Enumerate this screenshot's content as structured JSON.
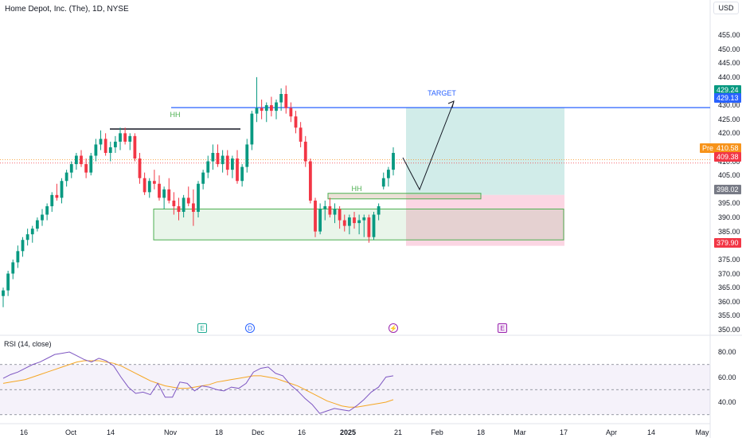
{
  "header": {
    "title": "Home Depot, Inc. (The), 1D, NYSE",
    "currency": "USD"
  },
  "rsi_panel": {
    "title": "RSI (14, close)"
  },
  "price_axis": {
    "ticks": [
      "455.00",
      "450.00",
      "445.00",
      "440.00",
      "435.00",
      "430.00",
      "425.00",
      "420.00",
      "415.00",
      "410.00",
      "405.00",
      "400.00",
      "395.00",
      "390.00",
      "385.00",
      "380.00",
      "375.00",
      "370.00",
      "365.00",
      "360.00",
      "355.00",
      "350.00"
    ]
  },
  "rsi_axis": {
    "ticks": [
      "80.00",
      "60.00",
      "40.00"
    ]
  },
  "time_axis": {
    "ticks": [
      "16",
      "Oct",
      "14",
      "Nov",
      "18",
      "Dec",
      "16",
      "2025",
      "21",
      "Feb",
      "18",
      "Mar",
      "17",
      "Apr",
      "14",
      "May"
    ],
    "bold_label": "2025"
  },
  "price_tags": {
    "green_tag": "429.24",
    "blue_tag": "429.13",
    "pre_label": "Pre",
    "pre_price": "410.58",
    "last_price": "409.38",
    "mid_tag": "398.02",
    "stop_tag": "379.90"
  },
  "annotations": {
    "target": "TARGET",
    "hh_top": "HH",
    "hh_mid": "HH"
  },
  "events": {
    "earnings": "E",
    "dividend": "D",
    "future_earnings": "E",
    "split": "⚡"
  },
  "colors": {
    "up": "#089981",
    "down": "#f23645",
    "target_line": "#2962ff",
    "hh_line": "#131722",
    "zone": "#4caf50",
    "rsi": "#7e57c2",
    "rsi_ma": "#f5a623",
    "profit_zone": "#b2dfdb",
    "loss_zone": "#f8bbd0"
  },
  "chart_data": {
    "type": "candlestick",
    "title": "Home Depot, Inc. (The), 1D, NYSE",
    "ylim": [
      350,
      455
    ],
    "ohlc": [
      [
        362,
        365,
        358,
        364
      ],
      [
        364,
        371,
        362,
        370
      ],
      [
        370,
        375,
        368,
        374
      ],
      [
        374,
        380,
        372,
        378
      ],
      [
        378,
        383,
        376,
        382
      ],
      [
        382,
        386,
        380,
        384
      ],
      [
        384,
        387,
        381,
        386
      ],
      [
        386,
        390,
        385,
        389
      ],
      [
        389,
        393,
        387,
        391
      ],
      [
        391,
        395,
        389,
        394
      ],
      [
        394,
        399,
        392,
        398
      ],
      [
        398,
        402,
        396,
        397
      ],
      [
        397,
        404,
        395,
        403
      ],
      [
        403,
        407,
        401,
        406
      ],
      [
        406,
        410,
        404,
        409
      ],
      [
        409,
        413,
        407,
        412
      ],
      [
        412,
        414,
        408,
        409
      ],
      [
        409,
        411,
        404,
        406
      ],
      [
        406,
        413,
        405,
        412
      ],
      [
        412,
        418,
        410,
        416
      ],
      [
        416,
        421,
        414,
        418
      ],
      [
        418,
        420,
        412,
        413
      ],
      [
        413,
        417,
        410,
        415
      ],
      [
        415,
        419,
        413,
        417
      ],
      [
        417,
        422,
        414,
        420
      ],
      [
        420,
        422,
        416,
        417
      ],
      [
        417,
        420,
        414,
        419
      ],
      [
        419,
        420,
        410,
        411
      ],
      [
        411,
        413,
        402,
        404
      ],
      [
        404,
        406,
        398,
        399
      ],
      [
        399,
        404,
        397,
        403
      ],
      [
        403,
        407,
        400,
        402
      ],
      [
        402,
        405,
        396,
        397
      ],
      [
        397,
        401,
        393,
        400
      ],
      [
        400,
        404,
        395,
        396
      ],
      [
        396,
        399,
        391,
        394
      ],
      [
        394,
        397,
        389,
        392
      ],
      [
        392,
        398,
        390,
        397
      ],
      [
        397,
        401,
        394,
        395
      ],
      [
        395,
        400,
        387,
        392
      ],
      [
        392,
        403,
        390,
        402
      ],
      [
        402,
        407,
        400,
        406
      ],
      [
        406,
        412,
        404,
        410
      ],
      [
        410,
        416,
        407,
        413
      ],
      [
        413,
        416,
        408,
        409
      ],
      [
        409,
        414,
        406,
        412
      ],
      [
        412,
        414,
        405,
        407
      ],
      [
        407,
        412,
        404,
        411
      ],
      [
        411,
        414,
        402,
        403
      ],
      [
        403,
        409,
        401,
        408
      ],
      [
        408,
        418,
        406,
        416
      ],
      [
        416,
        428,
        414,
        427
      ],
      [
        427,
        440,
        424,
        429
      ],
      [
        429,
        432,
        425,
        428
      ],
      [
        428,
        431,
        424,
        430
      ],
      [
        430,
        433,
        426,
        428
      ],
      [
        428,
        432,
        425,
        431
      ],
      [
        431,
        436,
        428,
        434
      ],
      [
        434,
        437,
        427,
        429
      ],
      [
        429,
        431,
        424,
        426
      ],
      [
        426,
        428,
        420,
        422
      ],
      [
        422,
        424,
        415,
        417
      ],
      [
        417,
        419,
        408,
        410
      ],
      [
        410,
        411,
        395,
        396
      ],
      [
        396,
        397,
        383,
        385
      ],
      [
        385,
        395,
        384,
        393
      ],
      [
        393,
        396,
        389,
        394
      ],
      [
        394,
        397,
        390,
        391
      ],
      [
        391,
        395,
        388,
        393
      ],
      [
        393,
        394,
        386,
        389
      ],
      [
        389,
        391,
        385,
        387
      ],
      [
        387,
        391,
        384,
        390
      ],
      [
        390,
        392,
        386,
        388
      ],
      [
        388,
        391,
        384,
        389
      ],
      [
        389,
        391,
        383,
        390
      ],
      [
        390,
        391,
        381,
        383
      ],
      [
        383,
        392,
        382,
        391
      ],
      [
        391,
        395,
        389,
        394
      ],
      [
        401,
        406,
        400,
        404
      ],
      [
        404,
        408,
        401,
        407
      ],
      [
        407,
        415,
        405,
        413
      ]
    ],
    "rsi": [
      59,
      62,
      64,
      67,
      70,
      72,
      75,
      78,
      79,
      80,
      77,
      74,
      72,
      75,
      73,
      69,
      60,
      52,
      47,
      48,
      46,
      55,
      44,
      44,
      56,
      55,
      49,
      53,
      52,
      50,
      49,
      52,
      51,
      55,
      64,
      67,
      68,
      63,
      61,
      54,
      49,
      43,
      38,
      31,
      33,
      35,
      34,
      33,
      37,
      42,
      48,
      52,
      60,
      61
    ],
    "rsi_ma": [
      55,
      56,
      57,
      58,
      60,
      62,
      64,
      66,
      68,
      70,
      72,
      73,
      73,
      73,
      72,
      71,
      69,
      66,
      63,
      60,
      57,
      55,
      53,
      52,
      51,
      51,
      52,
      53,
      54,
      56,
      57,
      58,
      59,
      60,
      61,
      61,
      60,
      59,
      57,
      55,
      53,
      50,
      47,
      44,
      41,
      39,
      37,
      36,
      36,
      37,
      38,
      39,
      40,
      42
    ],
    "annotation_levels": {
      "target": 429.13,
      "hh_top": 421.5,
      "hh_mid": 398.02,
      "stop": 379.9,
      "zone_top": 393,
      "zone_bottom": 382
    }
  }
}
